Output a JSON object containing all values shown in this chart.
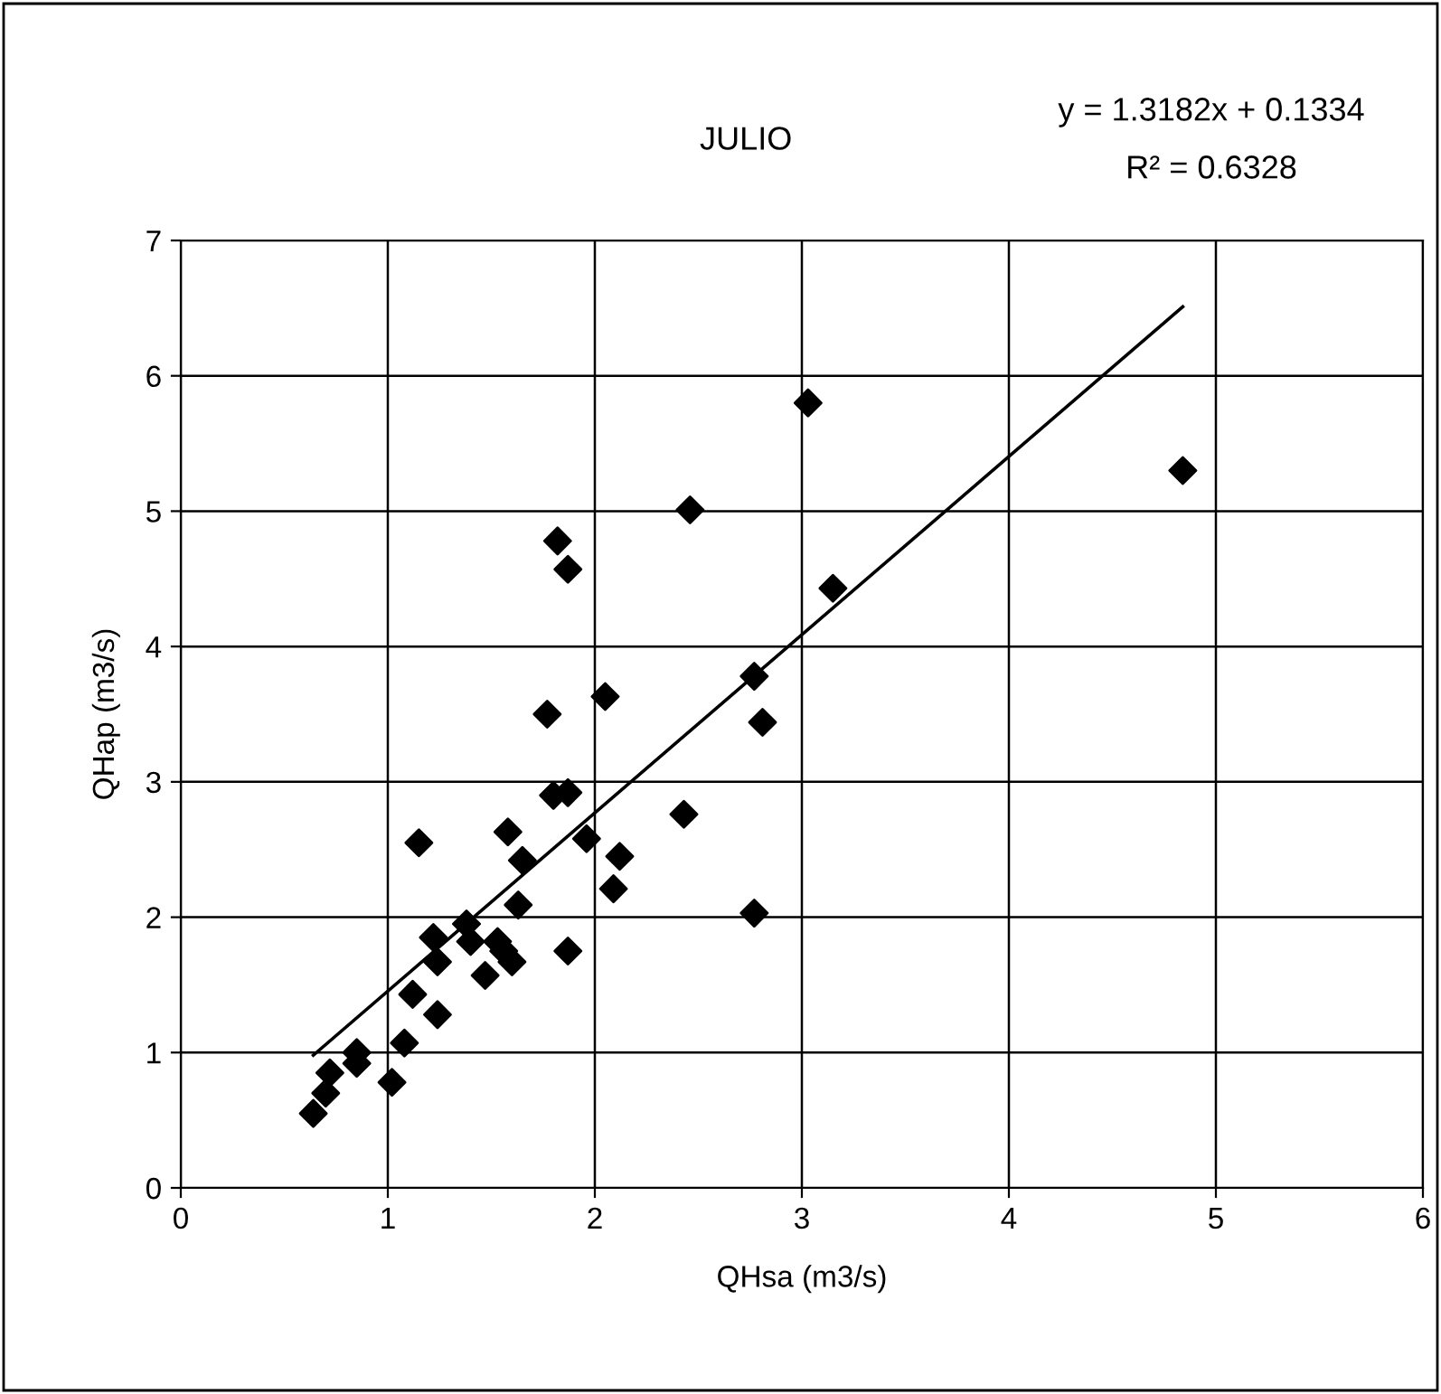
{
  "chart_data": {
    "type": "scatter",
    "title": "JULIO",
    "xlabel": "QHsa (m3/s)",
    "ylabel": "QHap (m3/s)",
    "annotations": [
      "y = 1.3182x + 0.1334",
      "R² = 0.6328"
    ],
    "xlim": [
      0,
      6
    ],
    "xticks": [
      0,
      1,
      2,
      3,
      4,
      5,
      6
    ],
    "ylim": [
      0,
      7
    ],
    "yticks": [
      0,
      1,
      2,
      3,
      4,
      5,
      6,
      7
    ],
    "grid": true,
    "legend": false,
    "series": [
      {
        "marker": "diamond",
        "color": "#000000",
        "x": [
          0.64,
          0.7,
          0.72,
          0.85,
          0.85,
          1.02,
          1.08,
          1.12,
          1.15,
          1.22,
          1.24,
          1.24,
          1.38,
          1.4,
          1.47,
          1.53,
          1.56,
          1.6,
          1.58,
          1.63,
          1.65,
          1.77,
          1.8,
          1.82,
          1.87,
          1.87,
          1.87,
          1.96,
          2.05,
          2.09,
          2.12,
          2.43,
          2.46,
          2.77,
          2.77,
          2.81,
          3.03,
          3.15,
          4.84
        ],
        "values": [
          0.55,
          0.7,
          0.85,
          1.0,
          0.92,
          0.78,
          1.07,
          1.43,
          2.55,
          1.85,
          1.67,
          1.28,
          1.95,
          1.82,
          1.57,
          1.82,
          1.75,
          1.67,
          2.63,
          2.09,
          2.42,
          3.5,
          2.9,
          4.78,
          4.57,
          2.92,
          1.75,
          2.58,
          3.63,
          2.21,
          2.45,
          2.76,
          5.01,
          3.78,
          2.03,
          3.44,
          5.8,
          4.43,
          5.3
        ]
      },
      {
        "type": "line",
        "marker": "none",
        "color": "#000000",
        "line_style": "solid",
        "x": [
          0.64,
          4.84
        ],
        "values": [
          0.98,
          6.51
        ]
      }
    ]
  }
}
